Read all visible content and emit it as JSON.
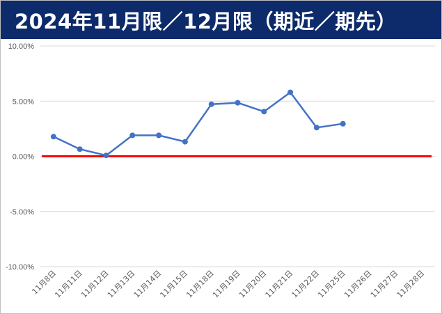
{
  "title": "2024年11月限／12月限（期近／期先）",
  "colors": {
    "title_background": "#0d2b6b",
    "title_text": "#ffffff",
    "series": "#4472c4",
    "zero_line": "#ff0000",
    "grid": "#d9d9d9"
  },
  "chart_data": {
    "type": "line",
    "title": "2024年11月限／12月限（期近／期先）",
    "xlabel": "",
    "ylabel": "",
    "ylim": [
      -0.1,
      0.1
    ],
    "y_ticks": [
      0.1,
      0.05,
      0.0,
      -0.05,
      -0.1
    ],
    "y_tick_labels": [
      "10.00%",
      "5.00%",
      "0.00%",
      "-5.00%",
      "-10.00%"
    ],
    "grid": true,
    "legend": "none",
    "categories": [
      "11月8日",
      "11月11日",
      "11月12日",
      "11月13日",
      "11月14日",
      "11月15日",
      "11月18日",
      "11月19日",
      "11月20日",
      "11月21日",
      "11月22日",
      "11月25日",
      "11月26日",
      "11月27日",
      "11月28日"
    ],
    "series": [
      {
        "values": [
          0.0178,
          0.0065,
          0.0008,
          0.019,
          0.019,
          0.0132,
          0.0472,
          0.0485,
          0.0405,
          0.058,
          0.026,
          0.0295,
          null,
          null,
          null
        ]
      }
    ],
    "reference_line": {
      "value": 0.0
    }
  }
}
